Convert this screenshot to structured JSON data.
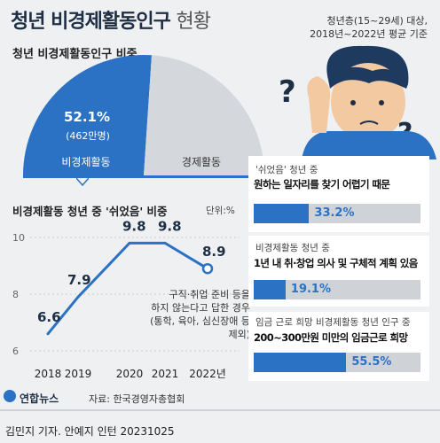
{
  "header": {
    "title": "청년 비경제활동인구",
    "title_suffix": "현황",
    "note_line1": "청년층(15~29세) 대상,",
    "note_line2": "2018년~2022년 평균 기준"
  },
  "pie_section": {
    "subtitle": "청년 비경제활동인구 비중",
    "percent_label": "52.1%",
    "count_label": "(462만명)",
    "label_left": "비경제활동",
    "label_right": "경제활동"
  },
  "line_section": {
    "subtitle": "비경제활동 청년 중 '쉬었음' 비중",
    "unit": "단위:%",
    "annotation_line1": "구직·취업 준비 등을",
    "annotation_line2": "하지 않는다고 답한 경우",
    "annotation_line3": "(통학, 육아, 심신장애 등 제외)"
  },
  "cards": [
    {
      "label": "'쉬었음' 청년 중",
      "text": "원하는 일자리를 찾기 어렵기 때문",
      "value_label": "33.2%"
    },
    {
      "label": "비경제활동 청년 중",
      "text": "1년 내 취·창업 의사 및 구체적 계획 있음",
      "value_label": "19.1%"
    },
    {
      "label": "임금 근로 희망 비경제활동 청년 인구 중",
      "text": "200~300만원 미만의 임금근로 희망",
      "value_label": "55.5%"
    }
  ],
  "footer": {
    "logo": "연합뉴스",
    "source": "자료: 한국경영자총협회",
    "credit": "김민지 기자. 안예지 인턴  20231025"
  },
  "colors": {
    "accent": "#2b71c4",
    "grey": "#cfd3d8",
    "navy": "#1e2f45"
  },
  "chart_data": [
    {
      "type": "pie",
      "title": "청년 비경제활동인구 비중",
      "categories": [
        "비경제활동",
        "경제활동"
      ],
      "values": [
        52.1,
        47.9
      ],
      "unit": "%"
    },
    {
      "type": "line",
      "title": "비경제활동 청년 중 '쉬었음' 비중",
      "x": [
        "2018",
        "2019",
        "2020",
        "2021",
        "2022년"
      ],
      "values": [
        6.6,
        7.9,
        9.8,
        9.8,
        8.9
      ],
      "value_labels": [
        "6.6",
        "7.9",
        "9.8",
        "9.8",
        "8.9"
      ],
      "y_ticks": [
        "10",
        "8",
        "6"
      ],
      "ylim": [
        6,
        10
      ],
      "unit": "%"
    },
    {
      "type": "bar",
      "categories": [
        "원하는 일자리를 찾기 어렵기 때문",
        "1년 내 취·창업 의사 및 구체적 계획 있음",
        "200~300만원 미만의 임금근로 희망"
      ],
      "values": [
        33.2,
        19.1,
        55.5
      ],
      "unit": "%"
    }
  ]
}
